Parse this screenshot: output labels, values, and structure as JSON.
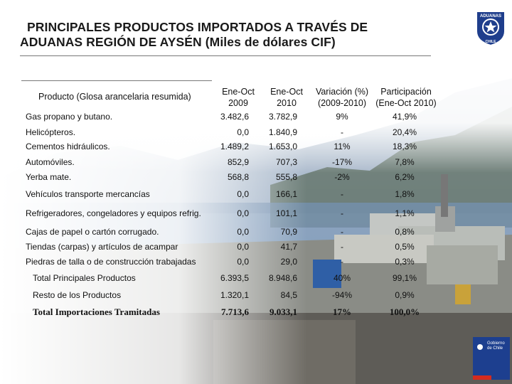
{
  "title": {
    "line1": "PRINCIPALES PRODUCTOS IMPORTADOS A TRAVÉS DE",
    "line2": "ADUANAS REGIÓN DE AYSÉN (Miles de dólares CIF)"
  },
  "table": {
    "headers": {
      "product": "Producto (Glosa arancelaria resumida)",
      "col1_l1": "Ene-Oct",
      "col1_l2": "2009",
      "col2_l1": "Ene-Oct",
      "col2_l2": "2010",
      "col3_l1": "Variación (%)",
      "col3_l2": "(2009-2010)",
      "col4_l1": "Participación",
      "col4_l2": "(Ene-Oct 2010)"
    },
    "rows": [
      {
        "product": "Gas propano y butano.",
        "v2009": "3.482,6",
        "v2010": "3.782,9",
        "var": "9%",
        "part": "41,9%"
      },
      {
        "product": "Helicópteros.",
        "v2009": "0,0",
        "v2010": "1.840,9",
        "var": "-",
        "part": "20,4%"
      },
      {
        "product": "Cementos hidráulicos.",
        "v2009": "1.489,2",
        "v2010": "1.653,0",
        "var": "11%",
        "part": "18,3%"
      },
      {
        "product": "Automóviles.",
        "v2009": "852,9",
        "v2010": "707,3",
        "var": "-17%",
        "part": "7,8%"
      },
      {
        "product": "Yerba mate.",
        "v2009": "568,8",
        "v2010": "555,8",
        "var": "-2%",
        "part": "6,2%"
      },
      {
        "product": "Vehículos transporte mercancías",
        "v2009": "0,0",
        "v2010": "166,1",
        "var": "-",
        "part": "1,8%"
      },
      {
        "product": "Refrigeradores, congeladores y equipos refrig.",
        "v2009": "0,0",
        "v2010": "101,1",
        "var": "-",
        "part": "1,1%"
      },
      {
        "product": "Cajas de papel o cartón corrugado.",
        "v2009": "0,0",
        "v2010": "70,9",
        "var": "-",
        "part": "0,8%"
      },
      {
        "product": "Tiendas (carpas) y artículos de acampar",
        "v2009": "0,0",
        "v2010": "41,7",
        "var": "-",
        "part": "0,5%"
      },
      {
        "product": "Piedras de talla o de construcción trabajadas",
        "v2009": "0,0",
        "v2010": "29,0",
        "var": "-",
        "part": "0,3%"
      }
    ],
    "totals": [
      {
        "product": "Total Principales Productos",
        "v2009": "6.393,5",
        "v2010": "8.948,6",
        "var": "40%",
        "part": "99,1%"
      },
      {
        "product": "Resto de los Productos",
        "v2009": "1.320,1",
        "v2010": "84,5",
        "var": "-94%",
        "part": "0,9%"
      },
      {
        "product": "Total Importaciones Tramitadas",
        "v2009": "7.713,6",
        "v2010": "9.033,1",
        "var": "17%",
        "part": "100,0%"
      }
    ]
  },
  "logo": {
    "text": "ADUANAS",
    "sub": "CHILE"
  },
  "gob": {
    "line1": "Gobierno",
    "line2": "de Chile"
  },
  "colors": {
    "logo_blue": "#1f3e8c",
    "sky": "#9fb7d4",
    "water": "#6e8fb0",
    "gob_blue": "#1d3f8f",
    "gob_red": "#d52b1e"
  }
}
